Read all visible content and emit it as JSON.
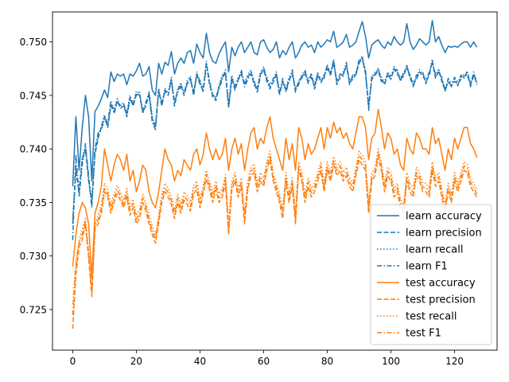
{
  "chart_data": {
    "type": "line",
    "title": "",
    "xlabel": "",
    "ylabel": "",
    "xlim": [
      -6.35,
      133.35
    ],
    "ylim": [
      0.7212,
      0.7528
    ],
    "x_ticks": [
      0,
      20,
      40,
      60,
      80,
      100,
      120
    ],
    "x_tick_labels": [
      "0",
      "20",
      "40",
      "60",
      "80",
      "100",
      "120"
    ],
    "y_ticks": [
      0.725,
      0.73,
      0.735,
      0.74,
      0.745,
      0.75
    ],
    "y_tick_labels": [
      "0.725",
      "0.730",
      "0.735",
      "0.740",
      "0.745",
      "0.750"
    ],
    "grid": false,
    "legend_position": "lower-right",
    "x_start": 0,
    "x_step": 1,
    "series": [
      {
        "name": "learn accuracy",
        "color": "#1f77b4",
        "dash": "solid",
        "values": [
          0.7365,
          0.743,
          0.738,
          0.742,
          0.745,
          0.743,
          0.737,
          0.7435,
          0.744,
          0.7447,
          0.7455,
          0.7448,
          0.7472,
          0.7463,
          0.747,
          0.7468,
          0.747,
          0.746,
          0.747,
          0.7468,
          0.7473,
          0.748,
          0.7468,
          0.747,
          0.7477,
          0.7455,
          0.745,
          0.748,
          0.747,
          0.7481,
          0.7478,
          0.7491,
          0.747,
          0.748,
          0.7485,
          0.748,
          0.749,
          0.7492,
          0.748,
          0.7498,
          0.749,
          0.7485,
          0.7508,
          0.749,
          0.7482,
          0.748,
          0.7489,
          0.7495,
          0.75,
          0.7472,
          0.7495,
          0.7487,
          0.7495,
          0.75,
          0.749,
          0.7495,
          0.75,
          0.749,
          0.7488,
          0.75,
          0.7502,
          0.7495,
          0.749,
          0.7493,
          0.75,
          0.7485,
          0.7492,
          0.7488,
          0.7495,
          0.75,
          0.7485,
          0.749,
          0.7497,
          0.75,
          0.7495,
          0.7497,
          0.749,
          0.75,
          0.7495,
          0.7498,
          0.7502,
          0.75,
          0.751,
          0.7495,
          0.7497,
          0.75,
          0.7507,
          0.7495,
          0.7497,
          0.75,
          0.751,
          0.7519,
          0.7505,
          0.7485,
          0.7497,
          0.75,
          0.7502,
          0.7497,
          0.7494,
          0.75,
          0.7497,
          0.7505,
          0.75,
          0.7497,
          0.75,
          0.7517,
          0.75,
          0.7493,
          0.7497,
          0.7503,
          0.75,
          0.7497,
          0.75,
          0.752,
          0.75,
          0.7505,
          0.7497,
          0.749,
          0.7496,
          0.7495,
          0.7496,
          0.7495,
          0.7498,
          0.75,
          0.75,
          0.7495,
          0.75,
          0.7495
        ]
      },
      {
        "name": "learn precision",
        "color": "#1f77b4",
        "dash": "dashed",
        "values": [
          0.733,
          0.738,
          0.736,
          0.739,
          0.74,
          0.737,
          0.735,
          0.7395,
          0.741,
          0.742,
          0.743,
          0.742,
          0.744,
          0.7435,
          0.7445,
          0.7438,
          0.744,
          0.7432,
          0.7448,
          0.744,
          0.7452,
          0.745,
          0.7435,
          0.744,
          0.7452,
          0.7428,
          0.742,
          0.7455,
          0.744,
          0.7455,
          0.745,
          0.7465,
          0.744,
          0.7455,
          0.746,
          0.745,
          0.7462,
          0.7466,
          0.745,
          0.747,
          0.746,
          0.7455,
          0.748,
          0.746,
          0.745,
          0.7445,
          0.7458,
          0.7467,
          0.747,
          0.744,
          0.7467,
          0.7455,
          0.7465,
          0.747,
          0.746,
          0.7467,
          0.7472,
          0.746,
          0.7455,
          0.747,
          0.7473,
          0.7465,
          0.7458,
          0.7462,
          0.747,
          0.7452,
          0.7462,
          0.7455,
          0.7465,
          0.747,
          0.7455,
          0.746,
          0.7468,
          0.747,
          0.7463,
          0.7467,
          0.7458,
          0.747,
          0.7462,
          0.7468,
          0.7475,
          0.747,
          0.748,
          0.7462,
          0.7466,
          0.747,
          0.7477,
          0.7462,
          0.7465,
          0.747,
          0.748,
          0.7485,
          0.747,
          0.744,
          0.7465,
          0.747,
          0.7472,
          0.7465,
          0.746,
          0.747,
          0.7465,
          0.7475,
          0.747,
          0.7465,
          0.7468,
          0.7477,
          0.7466,
          0.746,
          0.7465,
          0.7472,
          0.7468,
          0.7463,
          0.7468,
          0.7482,
          0.7466,
          0.7473,
          0.7463,
          0.7455,
          0.7462,
          0.746,
          0.7463,
          0.7461,
          0.7465,
          0.7468,
          0.7469,
          0.746,
          0.7468,
          0.7462
        ]
      },
      {
        "name": "learn recall",
        "color": "#1f77b4",
        "dash": "dotted",
        "values": [
          0.7335,
          0.7385,
          0.7362,
          0.7392,
          0.7402,
          0.7372,
          0.7352,
          0.7398,
          0.7412,
          0.7422,
          0.7432,
          0.7422,
          0.7442,
          0.7437,
          0.7447,
          0.744,
          0.7442,
          0.7434,
          0.745,
          0.7442,
          0.7454,
          0.7452,
          0.7437,
          0.7442,
          0.7454,
          0.743,
          0.7422,
          0.7457,
          0.7442,
          0.7457,
          0.7452,
          0.7467,
          0.7442,
          0.7457,
          0.7462,
          0.7452,
          0.7464,
          0.7468,
          0.7452,
          0.7472,
          0.7462,
          0.7457,
          0.7482,
          0.7462,
          0.7452,
          0.7447,
          0.746,
          0.7469,
          0.7472,
          0.7442,
          0.7469,
          0.7457,
          0.7467,
          0.7472,
          0.7462,
          0.7469,
          0.7474,
          0.7462,
          0.7457,
          0.7472,
          0.7475,
          0.7467,
          0.746,
          0.7464,
          0.7472,
          0.7454,
          0.7464,
          0.7457,
          0.7467,
          0.7472,
          0.7457,
          0.7462,
          0.747,
          0.7472,
          0.7465,
          0.7469,
          0.746,
          0.7472,
          0.7464,
          0.747,
          0.7477,
          0.7472,
          0.7482,
          0.7464,
          0.7468,
          0.7472,
          0.7479,
          0.7464,
          0.7467,
          0.7472,
          0.7482,
          0.7487,
          0.7472,
          0.7442,
          0.7467,
          0.7472,
          0.7474,
          0.7467,
          0.7462,
          0.7472,
          0.7467,
          0.7477,
          0.7472,
          0.7467,
          0.747,
          0.7479,
          0.7468,
          0.7462,
          0.7467,
          0.7474,
          0.747,
          0.7465,
          0.747,
          0.7484,
          0.7468,
          0.7475,
          0.7465,
          0.7457,
          0.7464,
          0.7462,
          0.7465,
          0.7463,
          0.7467,
          0.747,
          0.7471,
          0.7462,
          0.747,
          0.7464
        ]
      },
      {
        "name": "learn F1",
        "color": "#1f77b4",
        "dash": "dashdot",
        "values": [
          0.7315,
          0.7395,
          0.7355,
          0.7385,
          0.7405,
          0.7375,
          0.7345,
          0.74,
          0.7415,
          0.7418,
          0.7428,
          0.7425,
          0.7445,
          0.7433,
          0.7443,
          0.7441,
          0.7443,
          0.743,
          0.7446,
          0.7443,
          0.745,
          0.7453,
          0.7433,
          0.7444,
          0.745,
          0.7425,
          0.7418,
          0.7453,
          0.7444,
          0.7453,
          0.7454,
          0.7463,
          0.7444,
          0.7453,
          0.7458,
          0.7454,
          0.746,
          0.7464,
          0.7454,
          0.7468,
          0.7464,
          0.7453,
          0.7478,
          0.7464,
          0.7448,
          0.7449,
          0.7456,
          0.7465,
          0.7474,
          0.7438,
          0.7465,
          0.7459,
          0.7463,
          0.7474,
          0.7458,
          0.7465,
          0.747,
          0.7464,
          0.7453,
          0.7468,
          0.7477,
          0.7463,
          0.7456,
          0.7466,
          0.7468,
          0.745,
          0.7466,
          0.7453,
          0.7463,
          0.7474,
          0.7453,
          0.7464,
          0.7466,
          0.7474,
          0.7461,
          0.7471,
          0.7456,
          0.7468,
          0.7466,
          0.7466,
          0.7479,
          0.7468,
          0.7484,
          0.746,
          0.747,
          0.7468,
          0.7481,
          0.746,
          0.7469,
          0.7468,
          0.7484,
          0.7483,
          0.7474,
          0.7436,
          0.7469,
          0.7468,
          0.7476,
          0.7463,
          0.7464,
          0.7468,
          0.7469,
          0.7473,
          0.7474,
          0.7463,
          0.7472,
          0.7475,
          0.747,
          0.7458,
          0.7469,
          0.747,
          0.7472,
          0.7461,
          0.7472,
          0.748,
          0.747,
          0.7471,
          0.7467,
          0.7453,
          0.7466,
          0.7458,
          0.7467,
          0.7459,
          0.7469,
          0.7466,
          0.7473,
          0.7458,
          0.7472,
          0.746
        ]
      },
      {
        "name": "test accuracy",
        "color": "#ff7f0e",
        "dash": "solid",
        "values": [
          0.729,
          0.732,
          0.734,
          0.735,
          0.7345,
          0.733,
          0.728,
          0.734,
          0.735,
          0.7365,
          0.74,
          0.7385,
          0.737,
          0.7385,
          0.7395,
          0.739,
          0.738,
          0.7395,
          0.737,
          0.738,
          0.736,
          0.737,
          0.7385,
          0.738,
          0.736,
          0.735,
          0.7345,
          0.736,
          0.738,
          0.74,
          0.739,
          0.7385,
          0.737,
          0.738,
          0.7375,
          0.739,
          0.7385,
          0.738,
          0.7395,
          0.74,
          0.7385,
          0.7395,
          0.7415,
          0.74,
          0.739,
          0.74,
          0.739,
          0.7395,
          0.741,
          0.738,
          0.74,
          0.741,
          0.7395,
          0.7405,
          0.738,
          0.74,
          0.7415,
          0.742,
          0.74,
          0.741,
          0.7405,
          0.742,
          0.743,
          0.741,
          0.74,
          0.739,
          0.738,
          0.741,
          0.739,
          0.7405,
          0.738,
          0.742,
          0.741,
          0.739,
          0.7405,
          0.7395,
          0.74,
          0.741,
          0.742,
          0.74,
          0.742,
          0.741,
          0.7425,
          0.7415,
          0.742,
          0.741,
          0.7415,
          0.7405,
          0.74,
          0.7415,
          0.743,
          0.743,
          0.742,
          0.739,
          0.741,
          0.7415,
          0.7437,
          0.742,
          0.74,
          0.7415,
          0.741,
          0.7395,
          0.74,
          0.7385,
          0.738,
          0.741,
          0.74,
          0.7395,
          0.7415,
          0.741,
          0.74,
          0.74,
          0.7395,
          0.742,
          0.7405,
          0.741,
          0.7395,
          0.738,
          0.74,
          0.739,
          0.741,
          0.74,
          0.741,
          0.742,
          0.742,
          0.7405,
          0.74,
          0.7392
        ]
      },
      {
        "name": "test precision",
        "color": "#ff7f0e",
        "dash": "dashed",
        "values": [
          0.7232,
          0.7282,
          0.7308,
          0.7315,
          0.733,
          0.7298,
          0.7262,
          0.7325,
          0.733,
          0.734,
          0.736,
          0.7355,
          0.734,
          0.735,
          0.7358,
          0.7352,
          0.7345,
          0.7355,
          0.7338,
          0.7345,
          0.733,
          0.7335,
          0.735,
          0.7342,
          0.733,
          0.732,
          0.7312,
          0.733,
          0.735,
          0.736,
          0.7355,
          0.7348,
          0.7335,
          0.735,
          0.734,
          0.7352,
          0.7348,
          0.7342,
          0.7358,
          0.7362,
          0.7345,
          0.7358,
          0.7372,
          0.7362,
          0.735,
          0.7362,
          0.735,
          0.7355,
          0.7368,
          0.732,
          0.7362,
          0.737,
          0.7355,
          0.7365,
          0.733,
          0.7362,
          0.7375,
          0.7378,
          0.736,
          0.737,
          0.7365,
          0.738,
          0.739,
          0.737,
          0.736,
          0.735,
          0.7335,
          0.737,
          0.735,
          0.7365,
          0.733,
          0.738,
          0.737,
          0.735,
          0.7365,
          0.7355,
          0.736,
          0.737,
          0.738,
          0.736,
          0.738,
          0.737,
          0.7385,
          0.7375,
          0.738,
          0.737,
          0.7375,
          0.7365,
          0.736,
          0.7375,
          0.739,
          0.7385,
          0.738,
          0.734,
          0.737,
          0.7375,
          0.7392,
          0.738,
          0.736,
          0.7375,
          0.737,
          0.7355,
          0.736,
          0.7345,
          0.734,
          0.737,
          0.736,
          0.7355,
          0.7375,
          0.737,
          0.736,
          0.736,
          0.7355,
          0.738,
          0.7365,
          0.737,
          0.7355,
          0.734,
          0.736,
          0.735,
          0.737,
          0.736,
          0.737,
          0.738,
          0.7378,
          0.7365,
          0.736,
          0.7355
        ]
      },
      {
        "name": "test recall",
        "color": "#ff7f0e",
        "dash": "dotted",
        "values": [
          0.7255,
          0.7295,
          0.7315,
          0.7325,
          0.7335,
          0.7305,
          0.7268,
          0.733,
          0.7338,
          0.7348,
          0.7368,
          0.7362,
          0.7348,
          0.7358,
          0.7366,
          0.736,
          0.7352,
          0.7363,
          0.7346,
          0.7353,
          0.7338,
          0.7343,
          0.7358,
          0.735,
          0.7338,
          0.7328,
          0.732,
          0.7338,
          0.7358,
          0.7368,
          0.7363,
          0.7356,
          0.7343,
          0.7358,
          0.7348,
          0.736,
          0.7356,
          0.735,
          0.7366,
          0.737,
          0.7353,
          0.7366,
          0.738,
          0.737,
          0.7358,
          0.737,
          0.7358,
          0.7363,
          0.7376,
          0.733,
          0.737,
          0.7378,
          0.7363,
          0.7373,
          0.734,
          0.737,
          0.7383,
          0.7386,
          0.7368,
          0.7378,
          0.7373,
          0.7388,
          0.7398,
          0.7378,
          0.7368,
          0.7358,
          0.7344,
          0.7378,
          0.7358,
          0.7373,
          0.734,
          0.7388,
          0.7378,
          0.7358,
          0.7373,
          0.7363,
          0.7368,
          0.7378,
          0.7388,
          0.7368,
          0.7388,
          0.7378,
          0.7393,
          0.7383,
          0.7388,
          0.7378,
          0.7383,
          0.7373,
          0.7368,
          0.7383,
          0.7398,
          0.7394,
          0.7388,
          0.735,
          0.7378,
          0.7383,
          0.74,
          0.7388,
          0.7368,
          0.7383,
          0.7378,
          0.7363,
          0.7368,
          0.7353,
          0.7348,
          0.7378,
          0.7368,
          0.7363,
          0.7383,
          0.7378,
          0.7368,
          0.7368,
          0.7363,
          0.7388,
          0.7373,
          0.7378,
          0.7363,
          0.7348,
          0.7368,
          0.7358,
          0.7378,
          0.7368,
          0.7378,
          0.7388,
          0.7386,
          0.7373,
          0.7368,
          0.7362
        ]
      },
      {
        "name": "test F1",
        "color": "#ff7f0e",
        "dash": "dashdot",
        "values": [
          0.7245,
          0.729,
          0.7312,
          0.732,
          0.7332,
          0.7302,
          0.7265,
          0.7328,
          0.7334,
          0.7344,
          0.7364,
          0.7358,
          0.7344,
          0.7354,
          0.7362,
          0.7356,
          0.7348,
          0.7359,
          0.7342,
          0.7349,
          0.7334,
          0.7339,
          0.7354,
          0.7346,
          0.7334,
          0.7324,
          0.7316,
          0.7334,
          0.7354,
          0.7364,
          0.7359,
          0.7352,
          0.7339,
          0.7354,
          0.7344,
          0.7356,
          0.7352,
          0.7346,
          0.7362,
          0.7366,
          0.7349,
          0.7362,
          0.7376,
          0.7366,
          0.7354,
          0.7366,
          0.7354,
          0.7359,
          0.7372,
          0.7325,
          0.7366,
          0.7374,
          0.7359,
          0.7369,
          0.7335,
          0.7366,
          0.7379,
          0.7382,
          0.7364,
          0.7374,
          0.7369,
          0.7384,
          0.7394,
          0.7374,
          0.7364,
          0.7354,
          0.734,
          0.7374,
          0.7354,
          0.7369,
          0.7335,
          0.7384,
          0.7374,
          0.7354,
          0.7369,
          0.7359,
          0.7364,
          0.7374,
          0.7384,
          0.7364,
          0.7384,
          0.7374,
          0.7389,
          0.7379,
          0.7384,
          0.7374,
          0.7379,
          0.7369,
          0.7364,
          0.7379,
          0.7394,
          0.739,
          0.7384,
          0.7345,
          0.7374,
          0.7379,
          0.7396,
          0.7384,
          0.7364,
          0.7379,
          0.7374,
          0.7359,
          0.7364,
          0.7349,
          0.7344,
          0.7374,
          0.7364,
          0.7359,
          0.7379,
          0.7374,
          0.7364,
          0.7364,
          0.7359,
          0.7384,
          0.7369,
          0.7374,
          0.7359,
          0.7344,
          0.7364,
          0.7354,
          0.7374,
          0.7364,
          0.7374,
          0.7384,
          0.7382,
          0.7369,
          0.7364,
          0.7358
        ]
      }
    ]
  }
}
